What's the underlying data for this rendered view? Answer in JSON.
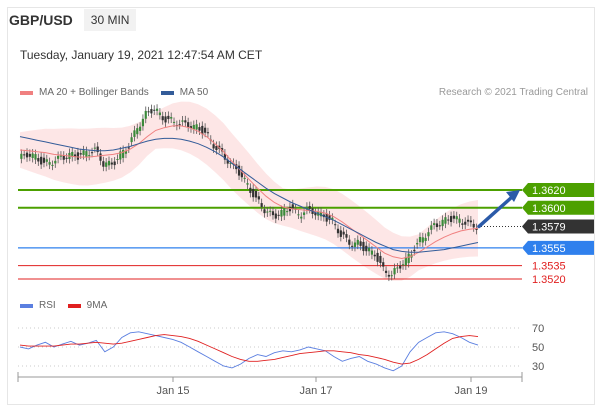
{
  "header": {
    "pair": "GBP/USD",
    "timeframe": "30 MIN",
    "datetime": "Tuesday, January 19, 2021 12:47:54 AM CET",
    "copyright": "Research © 2021 Trading Central"
  },
  "legend": {
    "ma20": "MA 20 + Bollinger Bands",
    "ma50": "MA 50",
    "ma20_color": "#f08080",
    "ma50_color": "#335c99"
  },
  "rsi_legend": {
    "rsi": "RSI",
    "ma9": "9MA",
    "rsi_color": "#5b7fe0",
    "ma9_color": "#e02020"
  },
  "chart_data": {
    "type": "candlestick",
    "price_levels": [
      {
        "label": "1.3620",
        "value": 1.362,
        "kind": "resistance",
        "color": "#4ca000"
      },
      {
        "label": "1.3600",
        "value": 1.36,
        "kind": "resistance",
        "color": "#4ca000"
      },
      {
        "label": "1.3579",
        "value": 1.3579,
        "kind": "last",
        "color": "#333333"
      },
      {
        "label": "1.3555",
        "value": 1.3555,
        "kind": "pivot",
        "color": "#2f80ed"
      },
      {
        "label": "1.3535",
        "value": 1.3535,
        "kind": "support",
        "color": "#e02020"
      },
      {
        "label": "1.3520",
        "value": 1.352,
        "kind": "support",
        "color": "#e02020"
      }
    ],
    "x_ticks": [
      "Jan 15",
      "Jan 17",
      "Jan 19"
    ],
    "close_path": [
      1.3655,
      1.366,
      1.3657,
      1.365,
      1.3652,
      1.3656,
      1.366,
      1.3658,
      1.3662,
      1.3665,
      1.365,
      1.3648,
      1.366,
      1.367,
      1.369,
      1.3705,
      1.3712,
      1.37,
      1.3698,
      1.3695,
      1.3693,
      1.369,
      1.3685,
      1.367,
      1.366,
      1.365,
      1.364,
      1.3625,
      1.361,
      1.3598,
      1.359,
      1.3595,
      1.36,
      1.3592,
      1.3598,
      1.3595,
      1.359,
      1.3585,
      1.357,
      1.356,
      1.356,
      1.3553,
      1.3548,
      1.353,
      1.3525,
      1.3535,
      1.3545,
      1.356,
      1.357,
      1.358,
      1.3585,
      1.3588,
      1.3586,
      1.3582,
      1.3579
    ],
    "ma20": [
      1.3665,
      1.3664,
      1.3663,
      1.3662,
      1.366,
      1.3659,
      1.3658,
      1.3657,
      1.3657,
      1.3658,
      1.3659,
      1.366,
      1.3662,
      1.3666,
      1.3672,
      1.368,
      1.3687,
      1.369,
      1.3692,
      1.3692,
      1.369,
      1.3686,
      1.368,
      1.3672,
      1.3663,
      1.3652,
      1.3642,
      1.3632,
      1.3622,
      1.3613,
      1.3606,
      1.3601,
      1.3599,
      1.3598,
      1.3597,
      1.3596,
      1.3594,
      1.359,
      1.3584,
      1.3577,
      1.357,
      1.3563,
      1.3556,
      1.3549,
      1.3545,
      1.3543,
      1.3545,
      1.355,
      1.3556,
      1.3562,
      1.3567,
      1.3571,
      1.3574,
      1.3576,
      1.3577
    ],
    "ma50": [
      1.368,
      1.3678,
      1.3676,
      1.3674,
      1.3672,
      1.367,
      1.3668,
      1.3666,
      1.3665,
      1.3664,
      1.3664,
      1.3665,
      1.3667,
      1.3669,
      1.3672,
      1.3675,
      1.3677,
      1.3678,
      1.3678,
      1.3677,
      1.3675,
      1.3672,
      1.3668,
      1.3663,
      1.3657,
      1.365,
      1.3643,
      1.3636,
      1.3629,
      1.3622,
      1.3616,
      1.3611,
      1.3606,
      1.3602,
      1.3598,
      1.3594,
      1.359,
      1.3586,
      1.3581,
      1.3576,
      1.3571,
      1.3566,
      1.3561,
      1.3557,
      1.3553,
      1.3551,
      1.355,
      1.355,
      1.3551,
      1.3552,
      1.3553,
      1.3555,
      1.3557,
      1.3559,
      1.3561
    ],
    "rsi_ticks": [
      70,
      50,
      30
    ],
    "rsi_values": [
      50,
      48,
      52,
      55,
      50,
      53,
      56,
      52,
      54,
      57,
      45,
      50,
      60,
      65,
      66,
      64,
      62,
      60,
      58,
      55,
      50,
      45,
      40,
      35,
      30,
      28,
      32,
      38,
      42,
      40,
      44,
      46,
      45,
      47,
      50,
      48,
      46,
      40,
      35,
      38,
      40,
      35,
      32,
      28,
      25,
      30,
      45,
      55,
      60,
      65,
      66,
      64,
      60,
      55,
      52
    ],
    "rsi_ma9": [
      52,
      51,
      51,
      51,
      51,
      52,
      53,
      53,
      54,
      55,
      54,
      53,
      54,
      56,
      58,
      60,
      62,
      63,
      62,
      61,
      59,
      56,
      52,
      48,
      44,
      40,
      37,
      35,
      35,
      36,
      37,
      39,
      41,
      43,
      44,
      45,
      46,
      46,
      45,
      44,
      42,
      41,
      39,
      37,
      34,
      32,
      33,
      37,
      42,
      48,
      54,
      59,
      61,
      62,
      61
    ]
  }
}
